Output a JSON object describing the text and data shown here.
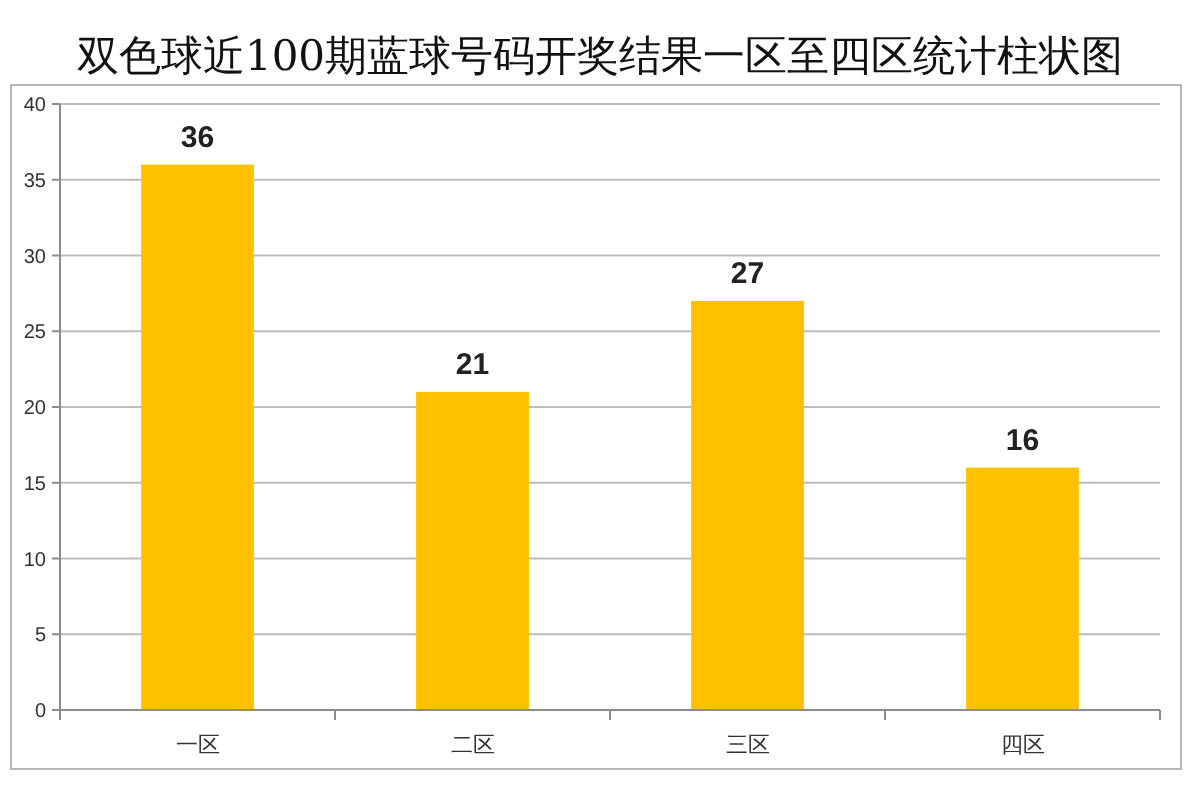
{
  "chart_data": {
    "type": "bar",
    "title": "双色球近100期蓝球号码开奖结果一区至四区统计柱状图",
    "categories": [
      "一区",
      "二区",
      "三区",
      "四区"
    ],
    "values": [
      36,
      21,
      27,
      16
    ],
    "color": "#ffc000",
    "ylim": [
      0,
      40
    ],
    "yticks": [
      0,
      5,
      10,
      15,
      20,
      25,
      30,
      35,
      40
    ],
    "grid": "y",
    "data_labels": true
  }
}
